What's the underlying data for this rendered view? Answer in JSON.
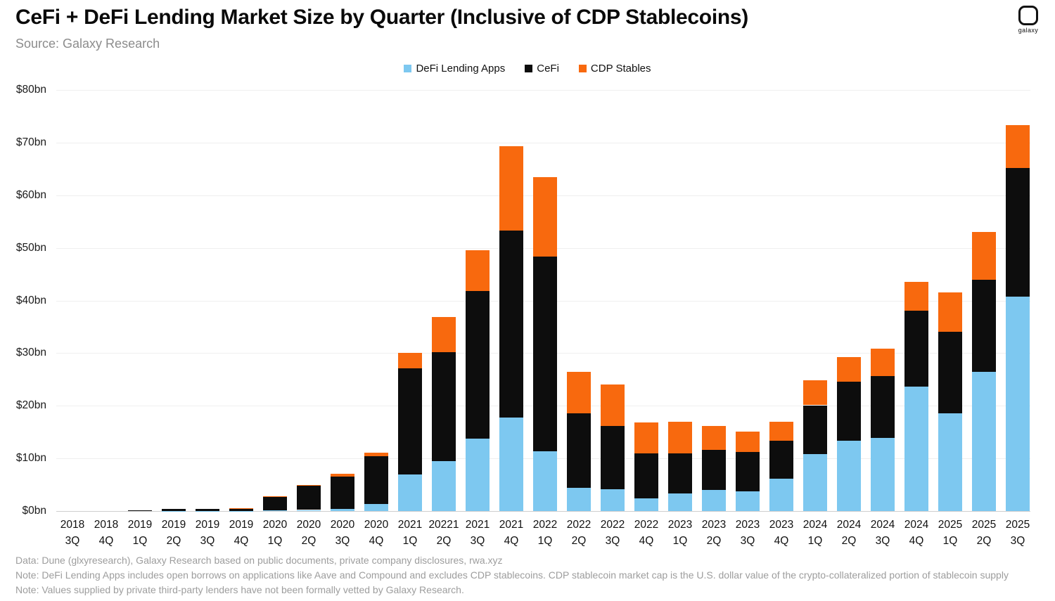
{
  "header": {
    "title": "CeFi + DeFi Lending Market Size by Quarter (Inclusive of CDP Stablecoins)",
    "source": "Source: Galaxy Research"
  },
  "logo": {
    "text": "galaxy"
  },
  "footer": {
    "line1": "Data: Dune (glxyresearch), Galaxy Research based on public documents, private company disclosures, rwa.xyz",
    "line2": "Note: DeFi Lending Apps includes open borrows on applications like Aave and Compound and excludes CDP stablecoins. CDP stablecoin market cap is the U.S. dollar value of the crypto-collateralized portion of stablecoin supply",
    "line3": "Note: Values supplied by private third-party lenders have not been formally vetted by Galaxy Research."
  },
  "chart_data": {
    "type": "bar",
    "stacked": true,
    "title": "CeFi + DeFi Lending Market Size by Quarter (Inclusive of CDP Stablecoins)",
    "xlabel": "",
    "ylabel": "",
    "ylim": [
      0,
      80
    ],
    "ytick_step": 10,
    "ytick_format": "$Nbn",
    "grid": true,
    "legend_position": "top-center",
    "units": "USD billions",
    "categories": [
      "2018 3Q",
      "2018 4Q",
      "2019 1Q",
      "2019 2Q",
      "2019 3Q",
      "2019 4Q",
      "2020 1Q",
      "2020 2Q",
      "2020 3Q",
      "2020 4Q",
      "2021 1Q",
      "20221 2Q",
      "2021 3Q",
      "2021 4Q",
      "2022 1Q",
      "2022 2Q",
      "2022 3Q",
      "2022 4Q",
      "2023 1Q",
      "2023 2Q",
      "2023 3Q",
      "2023 4Q",
      "2024 1Q",
      "2024 2Q",
      "2024 3Q",
      "2024 4Q",
      "2025 1Q",
      "2025 2Q",
      "2025 3Q"
    ],
    "series": [
      {
        "name": "DeFi Lending Apps",
        "color": "#7DC8F0",
        "values": [
          0,
          0,
          0.1,
          0.05,
          0.05,
          0.05,
          0.1,
          0.2,
          0.4,
          1.4,
          6.9,
          9.5,
          13.7,
          17.7,
          11.3,
          4.4,
          4.1,
          2.4,
          3.4,
          4.0,
          3.7,
          6.2,
          10.8,
          13.3,
          13.9,
          23.6,
          18.5,
          26.4,
          40.7
        ]
      },
      {
        "name": "CeFi",
        "color": "#0D0D0D",
        "values": [
          0,
          0,
          0.1,
          0.35,
          0.3,
          0.4,
          2.6,
          4.6,
          6.1,
          9.0,
          20.2,
          20.7,
          28.1,
          35.6,
          37.0,
          14.2,
          12.0,
          8.5,
          7.5,
          7.6,
          7.5,
          7.1,
          9.3,
          11.3,
          11.8,
          14.4,
          15.5,
          17.6,
          24.5
        ]
      },
      {
        "name": "CDP Stables",
        "color": "#F8690E",
        "values": [
          0,
          0,
          0,
          0,
          0,
          0.1,
          0.1,
          0.2,
          0.6,
          0.7,
          2.9,
          6.6,
          7.8,
          16.0,
          15.1,
          7.8,
          8.0,
          5.9,
          6.1,
          4.6,
          3.9,
          3.7,
          4.8,
          4.7,
          5.2,
          5.5,
          7.6,
          9.0,
          8.1
        ]
      }
    ],
    "totals": [
      0,
      0,
      0.2,
      0.4,
      0.35,
      0.55,
      2.8,
      5.0,
      7.1,
      11.1,
      30.0,
      36.8,
      49.6,
      69.3,
      63.4,
      26.4,
      24.1,
      16.8,
      17.0,
      16.2,
      15.1,
      17.0,
      24.9,
      29.3,
      30.9,
      43.5,
      41.6,
      53.0,
      73.3
    ]
  },
  "colors": {
    "background": "#FFFFFF",
    "gridline": "#EFEFEF",
    "axis_baseline": "#CFCFCF",
    "title_text": "#0A0A0A",
    "source_text": "#8C8C8C",
    "footer_text": "#9D9D9D"
  }
}
